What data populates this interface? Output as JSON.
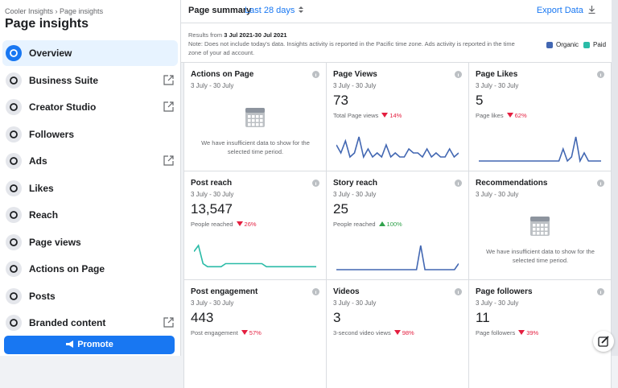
{
  "sidebar": {
    "breadcrumb": "Cooler Insights › Page insights",
    "title": "Page insights",
    "items": [
      {
        "label": "Overview",
        "active": true
      },
      {
        "label": "Business Suite",
        "external": true
      },
      {
        "label": "Creator Studio",
        "external": true
      },
      {
        "label": "Followers"
      },
      {
        "label": "Ads",
        "external": true
      },
      {
        "label": "Likes"
      },
      {
        "label": "Reach"
      },
      {
        "label": "Page views"
      },
      {
        "label": "Actions on Page"
      },
      {
        "label": "Posts"
      },
      {
        "label": "Branded content",
        "external": true
      }
    ],
    "promote": "Promote"
  },
  "header": {
    "tab": "Page summary",
    "range": "Last 28 days",
    "export": "Export Data"
  },
  "note": {
    "results": "Results from",
    "dates": "3 Jul 2021-30 Jul 2021",
    "text": "Note: Does not include today's data. Insights activity is reported in the Pacific time zone. Ads activity is reported in the time zone of your ad account.",
    "legend": [
      {
        "name": "Organic",
        "color": "#4267b2"
      },
      {
        "name": "Paid",
        "color": "#2abba7"
      }
    ]
  },
  "cards": [
    {
      "title": "Actions on Page",
      "dates": "3 July - 30 July",
      "empty": "We have insufficient data to show for the selected time period."
    },
    {
      "title": "Page Views",
      "dates": "3 July - 30 July",
      "value": "73",
      "caption": "Total Page views",
      "change": "14%",
      "direction": "down",
      "color": "#4267b2",
      "trend": [
        4,
        2,
        5,
        1,
        2,
        6,
        1,
        3,
        1,
        2,
        1,
        4,
        1,
        2,
        1,
        1,
        3,
        2,
        2,
        1,
        3,
        1,
        2,
        1,
        1,
        3,
        1,
        2
      ]
    },
    {
      "title": "Page Likes",
      "dates": "3 July - 30 July",
      "value": "5",
      "caption": "Page likes",
      "change": "62%",
      "direction": "down",
      "color": "#4267b2",
      "trend": [
        0,
        0,
        0,
        0,
        0,
        0,
        0,
        0,
        0,
        0,
        0,
        0,
        0,
        0,
        0,
        0,
        0,
        0,
        0,
        0,
        3,
        0,
        1,
        6,
        0,
        2,
        0,
        0,
        0,
        0
      ]
    },
    {
      "title": "Post reach",
      "dates": "3 July - 30 July",
      "value": "13,547",
      "caption": "People reached",
      "change": "26%",
      "direction": "down",
      "color": "#2abba7",
      "trend": [
        3,
        4,
        1,
        0.5,
        0.5,
        0.5,
        0.5,
        1,
        1,
        1,
        1,
        1,
        1,
        1,
        1,
        1,
        0.5,
        0.5,
        0.5,
        0.5,
        0.5,
        0.5,
        0.5,
        0.5,
        0.5,
        0.5,
        0.5,
        0.5
      ]
    },
    {
      "title": "Story reach",
      "dates": "3 July - 30 July",
      "value": "25",
      "caption": "People reached",
      "change": "100%",
      "direction": "up",
      "color": "#4267b2",
      "trend": [
        0,
        0,
        0,
        0,
        0,
        0,
        0,
        0,
        0,
        0,
        0,
        0,
        0,
        0,
        0,
        0,
        0,
        0,
        0,
        0,
        8,
        0,
        0,
        0,
        0,
        0,
        0,
        0,
        0,
        2
      ]
    },
    {
      "title": "Recommendations",
      "dates": "3 July - 30 July",
      "empty": "We have insufficient data to show for the selected time period."
    },
    {
      "title": "Post engagement",
      "dates": "3 July - 30 July",
      "value": "443",
      "caption": "Post engagement",
      "change": "57%",
      "direction": "down"
    },
    {
      "title": "Videos",
      "dates": "3 July - 30 July",
      "value": "3",
      "caption": "3-second video views",
      "change": "98%",
      "direction": "down"
    },
    {
      "title": "Page followers",
      "dates": "3 July - 30 July",
      "value": "11",
      "caption": "Page followers",
      "change": "39%",
      "direction": "down"
    }
  ]
}
